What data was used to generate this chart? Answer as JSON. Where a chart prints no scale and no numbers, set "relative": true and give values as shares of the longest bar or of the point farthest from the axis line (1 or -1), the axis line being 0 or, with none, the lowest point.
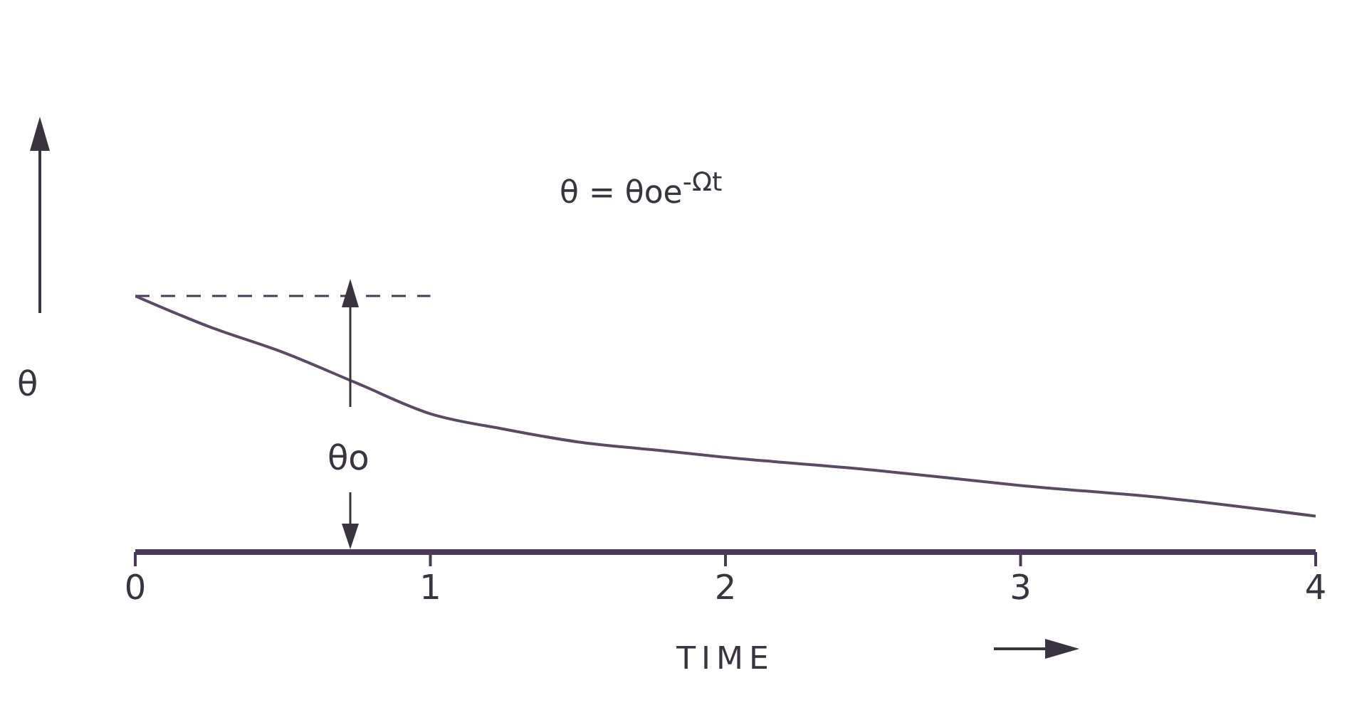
{
  "chart_data": {
    "type": "line",
    "relative": true,
    "xlabel": "TIME",
    "ylabel": "θ",
    "annotations": [
      "θ = θoe$^{-Ωt}$",
      "θo"
    ],
    "x": [
      0,
      0.25,
      0.5,
      0.75,
      1,
      1.25,
      1.5,
      1.75,
      2,
      2.5,
      3,
      3.5,
      4
    ],
    "series": [
      {
        "color": "#5a4a66",
        "values": [
          1,
          0.88,
          0.78,
          0.66,
          0.54,
          0.48,
          0.43,
          0.4,
          0.37,
          0.32,
          0.26,
          0.21,
          0.14
        ]
      }
    ],
    "xlim": [
      0,
      4
    ],
    "xticks": [
      0,
      1,
      2,
      3,
      4
    ],
    "ref_lines": [
      {
        "axis": "y",
        "value": 1,
        "line_style": "dashed"
      }
    ],
    "grid": false,
    "legend": false,
    "marker": "none",
    "line_style": "solid"
  }
}
